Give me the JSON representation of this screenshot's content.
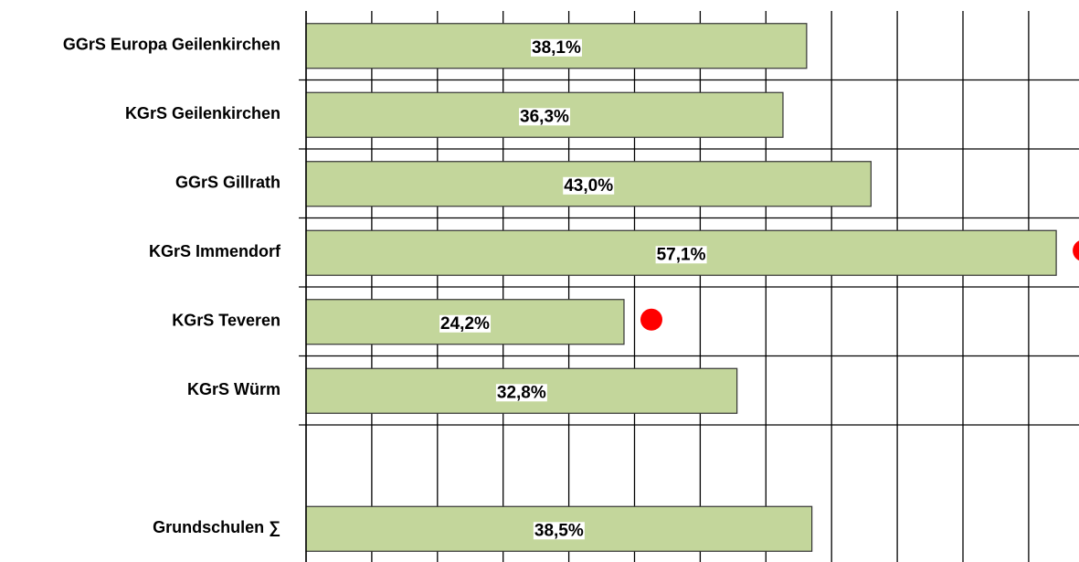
{
  "chart_data": {
    "type": "hbar",
    "categories": [
      "GGrS Europa Geilenkirchen",
      "KGrS Geilenkirchen",
      "GGrS Gillrath",
      "KGrS Immendorf",
      "KGrS Teveren",
      "KGrS Würm",
      null,
      "Grundschulen ∑"
    ],
    "values": [
      38.1,
      36.3,
      43.0,
      57.1,
      24.2,
      32.8,
      null,
      38.5
    ],
    "value_labels": [
      "38,1%",
      "36,3%",
      "43,0%",
      "57,1%",
      "24,2%",
      "32,8%",
      null,
      "38,5%"
    ],
    "flagged": [
      false,
      false,
      false,
      true,
      true,
      false,
      false,
      false
    ],
    "color": "#c3d69b",
    "flag_color": "#ff0000",
    "xlim": [
      0,
      60
    ],
    "xticks": [
      0,
      5,
      10,
      15,
      20,
      25,
      30,
      35,
      40,
      45,
      50,
      55,
      60
    ],
    "grid": true
  }
}
